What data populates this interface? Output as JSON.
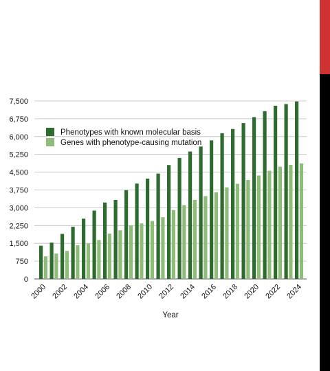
{
  "chart_data": {
    "type": "bar",
    "title": "",
    "xlabel": "Year",
    "ylabel": "",
    "ylim": [
      0,
      7500
    ],
    "yticks": [
      "0",
      "750",
      "1,500",
      "2,250",
      "3,000",
      "3,750",
      "4,500",
      "5,250",
      "6,000",
      "6,750",
      "7,500"
    ],
    "ytick_values": [
      0,
      750,
      1500,
      2250,
      3000,
      3750,
      4500,
      5250,
      6000,
      6750,
      7500
    ],
    "categories": [
      "2000",
      "2001",
      "2002",
      "2003",
      "2004",
      "2005",
      "2006",
      "2007",
      "2008",
      "2009",
      "2010",
      "2011",
      "2012",
      "2013",
      "2014",
      "2015",
      "2016",
      "2017",
      "2018",
      "2019",
      "2020",
      "2021",
      "2022",
      "2023",
      "2024"
    ],
    "x_tick_labels": [
      "2000",
      "",
      "2002",
      "",
      "2004",
      "",
      "2006",
      "",
      "2008",
      "",
      "2010",
      "",
      "2012",
      "",
      "2014",
      "",
      "2016",
      "",
      "2018",
      "",
      "2020",
      "",
      "2022",
      "",
      "2024"
    ],
    "grid": true,
    "legend_position": "top-left",
    "series": [
      {
        "name": "Phenotypes with known molecular basis",
        "color": "#2e6b2e",
        "values": [
          1400,
          1530,
          1900,
          2200,
          2540,
          2880,
          3220,
          3330,
          3740,
          4020,
          4230,
          4440,
          4800,
          5100,
          5370,
          5580,
          5840,
          6140,
          6320,
          6570,
          6820,
          7070,
          7300,
          7370,
          7480
        ]
      },
      {
        "name": "Genes with phenotype-causing mutation",
        "color": "#8fbc78",
        "values": [
          950,
          1070,
          1180,
          1420,
          1490,
          1640,
          1910,
          2050,
          2250,
          2340,
          2440,
          2600,
          2900,
          3110,
          3330,
          3490,
          3650,
          3860,
          4010,
          4170,
          4360,
          4560,
          4730,
          4810,
          4870
        ]
      }
    ]
  },
  "decor": {
    "edge_top_color": "#d03232",
    "edge_bottom_color": "#000000"
  }
}
